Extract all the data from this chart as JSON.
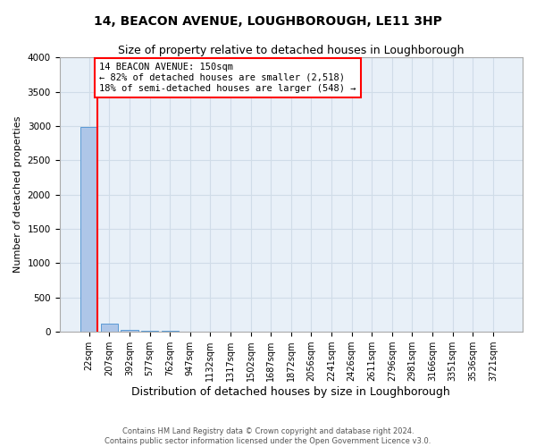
{
  "title": "14, BEACON AVENUE, LOUGHBOROUGH, LE11 3HP",
  "subtitle": "Size of property relative to detached houses in Loughborough",
  "xlabel": "Distribution of detached houses by size in Loughborough",
  "ylabel": "Number of detached properties",
  "categories": [
    "22sqm",
    "207sqm",
    "392sqm",
    "577sqm",
    "762sqm",
    "947sqm",
    "1132sqm",
    "1317sqm",
    "1502sqm",
    "1687sqm",
    "1872sqm",
    "2056sqm",
    "2241sqm",
    "2426sqm",
    "2611sqm",
    "2796sqm",
    "2981sqm",
    "3166sqm",
    "3351sqm",
    "3536sqm",
    "3721sqm"
  ],
  "values": [
    2980,
    115,
    35,
    15,
    10,
    8,
    6,
    5,
    4,
    3,
    3,
    2,
    2,
    2,
    1,
    1,
    1,
    1,
    1,
    1,
    1
  ],
  "bar_color": "#aec6e8",
  "bar_edge_color": "#5b9bd5",
  "annotation_text": "14 BEACON AVENUE: 150sqm\n← 82% of detached houses are smaller (2,518)\n18% of semi-detached houses are larger (548) →",
  "annotation_box_color": "white",
  "annotation_box_edge_color": "red",
  "ylim": [
    0,
    4000
  ],
  "yticks": [
    0,
    500,
    1000,
    1500,
    2000,
    2500,
    3000,
    3500,
    4000
  ],
  "background_color": "#e8f0f8",
  "grid_color": "#d0dce8",
  "footer_line1": "Contains HM Land Registry data © Crown copyright and database right 2024.",
  "footer_line2": "Contains public sector information licensed under the Open Government Licence v3.0.",
  "title_fontsize": 10,
  "subtitle_fontsize": 9,
  "tick_fontsize": 7,
  "ylabel_fontsize": 8,
  "xlabel_fontsize": 9
}
